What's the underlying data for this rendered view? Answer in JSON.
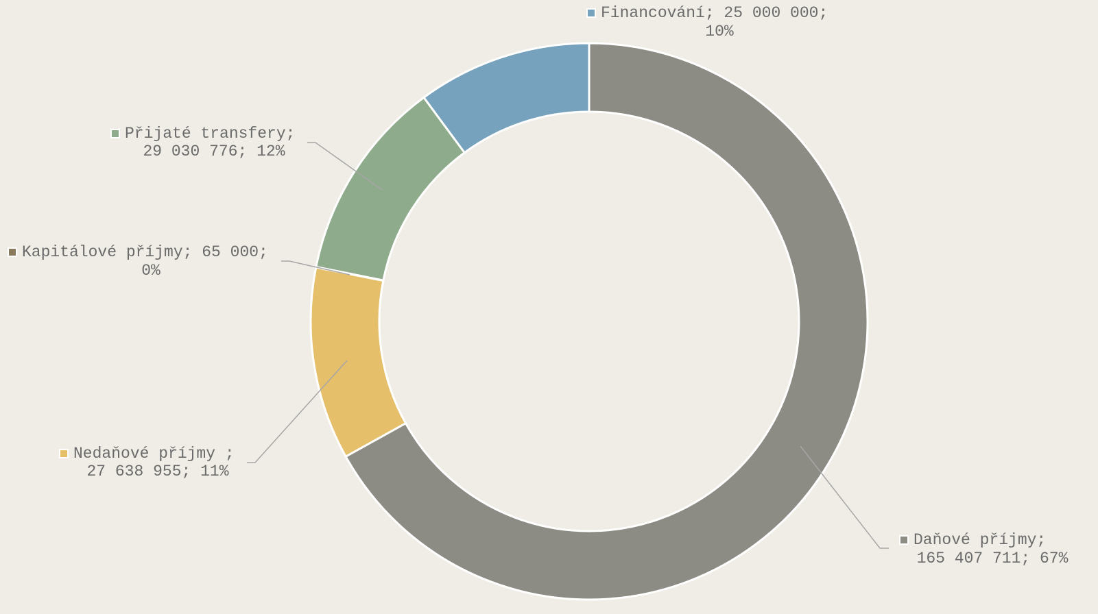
{
  "chart_data": {
    "type": "donut",
    "categories": [
      "Daňové příjmy",
      "Nedaňové příjmy",
      "Kapitálové příjmy",
      "Přijaté transfery",
      "Financování"
    ],
    "values": [
      165407711,
      27638955,
      65000,
      29030776,
      25000000
    ],
    "colors": [
      "#8c8c85",
      "#e5bf69",
      "#8c7a5c",
      "#8eab8c",
      "#76a2bd"
    ],
    "value_labels": [
      [
        "Daňové příjmy;",
        "165 407 711; 67%"
      ],
      [
        "Nedaňové příjmy ;",
        "27 638 955; 11%"
      ],
      [
        "Kapitálové příjmy; 65 000;",
        "0%"
      ],
      [
        "Přijaté transfery;",
        "29 030 776; 12%"
      ],
      [
        "Financování; 25 000 000;",
        "10%"
      ]
    ]
  }
}
